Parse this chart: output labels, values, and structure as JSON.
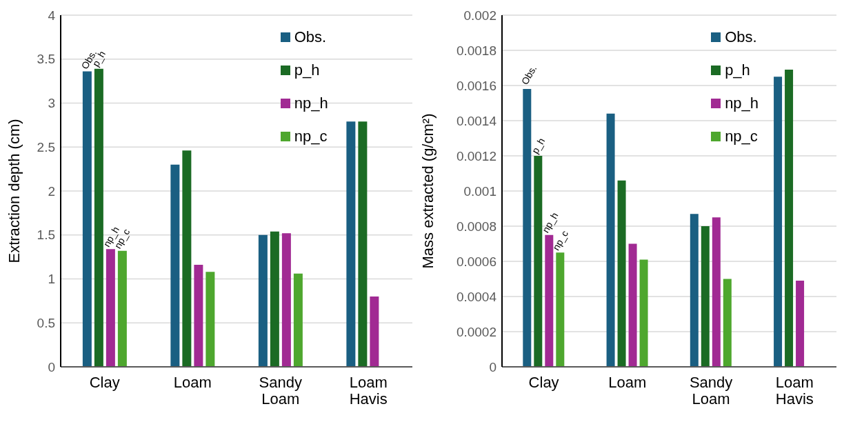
{
  "chart_data": [
    {
      "type": "bar",
      "ylabel": "Extraction depth (cm)",
      "categories": [
        "Clay",
        "Loam",
        "Sandy Loam",
        "Loam Havis"
      ],
      "series": [
        {
          "name": "Obs.",
          "color": "#1a5f82",
          "values": [
            3.36,
            2.3,
            1.5,
            2.79
          ]
        },
        {
          "name": "p_h",
          "color": "#1b6b24",
          "values": [
            3.39,
            2.46,
            1.54,
            2.79
          ]
        },
        {
          "name": "np_h",
          "color": "#a12a93",
          "values": [
            1.34,
            1.16,
            1.52,
            0.8
          ]
        },
        {
          "name": "np_c",
          "color": "#4ea72e",
          "values": [
            1.32,
            1.08,
            1.06,
            null
          ]
        }
      ],
      "annotations": [
        {
          "text": "Obs.",
          "x": "Clay",
          "y": 3.36
        },
        {
          "text": "p_h",
          "x": "Clay",
          "y": 3.39
        },
        {
          "text": "np_h",
          "x": "Clay",
          "y": 1.34
        },
        {
          "text": "np_c",
          "x": "Clay",
          "y": 1.32
        }
      ],
      "ylim": [
        0,
        4
      ],
      "yticks": [
        0,
        0.5,
        1,
        1.5,
        2,
        2.5,
        3,
        3.5,
        4
      ],
      "grid": "y",
      "legend": "top right"
    },
    {
      "type": "bar",
      "ylabel": "Mass extracted (g/cm²)",
      "categories": [
        "Clay",
        "Loam",
        "Sandy Loam",
        "Loam Havis"
      ],
      "series": [
        {
          "name": "Obs.",
          "color": "#1a5f82",
          "values": [
            0.00158,
            0.00144,
            0.00087,
            0.00165
          ]
        },
        {
          "name": "p_h",
          "color": "#1b6b24",
          "values": [
            0.0012,
            0.00106,
            0.0008,
            0.00169
          ]
        },
        {
          "name": "np_h",
          "color": "#a12a93",
          "values": [
            0.00075,
            0.0007,
            0.00085,
            0.00049
          ]
        },
        {
          "name": "np_c",
          "color": "#4ea72e",
          "values": [
            0.00065,
            0.00061,
            0.0005,
            null
          ]
        }
      ],
      "annotations": [
        "Obs.",
        {
          "text": "p_h",
          "x": "Clay",
          "y": 0.0012
        },
        {
          "text": "np_h",
          "x": "Clay",
          "y": 0.00075
        },
        {
          "text": "np_c",
          "x": "Clay",
          "y": 0.00065
        }
      ],
      "ylim": [
        0,
        0.002
      ],
      "yticks": [
        0,
        0.0002,
        0.0004,
        0.0006,
        0.0008,
        0.001,
        0.0012,
        0.0014,
        0.0016,
        0.0018,
        0.002
      ],
      "grid": "y",
      "legend": "top right"
    }
  ]
}
